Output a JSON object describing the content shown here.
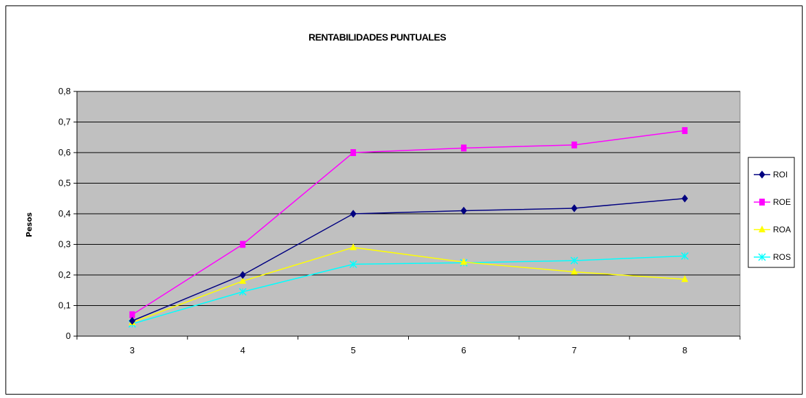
{
  "chart_data": {
    "type": "line",
    "title": "RENTABILIDADES PUNTUALES",
    "xlabel": "",
    "ylabel": "Pesos",
    "categories": [
      "3",
      "4",
      "5",
      "6",
      "7",
      "8"
    ],
    "ylim": [
      0,
      0.8
    ],
    "yticks": [
      "0",
      "0,1",
      "0,2",
      "0,3",
      "0,4",
      "0,5",
      "0,6",
      "0,7",
      "0,8"
    ],
    "grid": true,
    "legend_position": "right",
    "plot_background": "#c0c0c0",
    "series": [
      {
        "name": "ROI",
        "color": "#000080",
        "marker": "diamond",
        "values": [
          0.05,
          0.2,
          0.4,
          0.41,
          0.418,
          0.45
        ]
      },
      {
        "name": "ROE",
        "color": "#ff00ff",
        "marker": "square",
        "values": [
          0.07,
          0.3,
          0.6,
          0.615,
          0.625,
          0.672
        ]
      },
      {
        "name": "ROA",
        "color": "#ffff00",
        "marker": "triangle",
        "values": [
          0.045,
          0.18,
          0.29,
          0.242,
          0.21,
          0.186
        ]
      },
      {
        "name": "ROS",
        "color": "#00ffff",
        "marker": "x",
        "values": [
          0.04,
          0.145,
          0.235,
          0.24,
          0.247,
          0.262
        ]
      }
    ]
  }
}
